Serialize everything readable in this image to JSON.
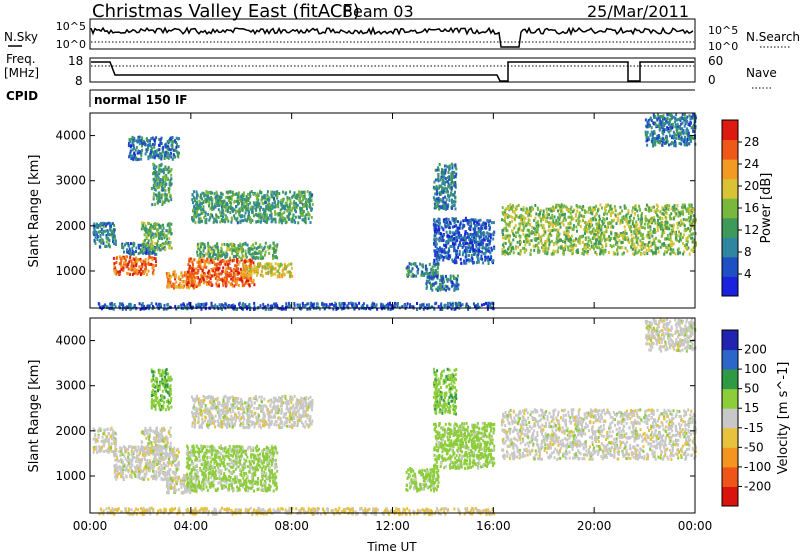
{
  "header": {
    "title": "Christmas Valley East (fitACF)",
    "beam": "Beam 03",
    "date": "25/Mar/2011"
  },
  "strips": {
    "noise": {
      "left_label": "N.Sky",
      "right_label": "N.Search",
      "left_ticks": [
        "10^5",
        "10^0"
      ],
      "right_ticks": [
        "10^5",
        "10^0"
      ]
    },
    "freq": {
      "left_label_1": "Freq.",
      "left_label_2": "[MHz]",
      "right_label": "Nave",
      "left_ticks": [
        "18",
        "8"
      ],
      "right_ticks": [
        "60",
        "0"
      ]
    },
    "cpid": {
      "label": "CPID",
      "value": "normal 150 IF"
    }
  },
  "colors": {
    "power": [
      "#1a22dd",
      "#1f4fc4",
      "#2f86a0",
      "#3f9a5a",
      "#79b83c",
      "#d9c234",
      "#f39a22",
      "#ee5818",
      "#dd1a10"
    ],
    "velocity": [
      "#d9140e",
      "#ef5518",
      "#f3951f",
      "#e8c23c",
      "#c8c8c8",
      "#8ccd3a",
      "#2f9a44",
      "#2c66c8",
      "#2024b0"
    ]
  },
  "chart_data": [
    {
      "type": "heatmap",
      "panel": "power",
      "xlabel": "",
      "ylabel": "Slant Range [km]",
      "xlim": [
        0,
        24
      ],
      "ylim": [
        180,
        4500
      ],
      "yticks": [
        1000,
        2000,
        3000,
        4000
      ],
      "colorbar": {
        "label": "Power [dB]",
        "ticks": [
          4,
          8,
          12,
          16,
          20,
          24,
          28
        ],
        "range": [
          0,
          32
        ]
      },
      "scatter_regions": [
        {
          "t": [
            0.1,
            1.0
          ],
          "r": [
            1550,
            2100
          ],
          "value": 10
        },
        {
          "t": [
            0.9,
            2.6
          ],
          "r": [
            950,
            1350
          ],
          "value": 26
        },
        {
          "t": [
            1.2,
            2.6
          ],
          "r": [
            1400,
            1650
          ],
          "value": 8
        },
        {
          "t": [
            2.0,
            3.2
          ],
          "r": [
            1500,
            2100
          ],
          "value": 14
        },
        {
          "t": [
            2.4,
            3.2
          ],
          "r": [
            2500,
            3400
          ],
          "value": 12
        },
        {
          "t": [
            3.0,
            4.2
          ],
          "r": [
            650,
            1050
          ],
          "value": 24
        },
        {
          "t": [
            3.8,
            6.5
          ],
          "r": [
            700,
            1300
          ],
          "value": 27
        },
        {
          "t": [
            4.2,
            7.4
          ],
          "r": [
            1300,
            1650
          ],
          "value": 14
        },
        {
          "t": [
            6.0,
            8.0
          ],
          "r": [
            900,
            1200
          ],
          "value": 20
        },
        {
          "t": [
            4.0,
            8.8
          ],
          "r": [
            2100,
            2800
          ],
          "value": 12
        },
        {
          "t": [
            1.5,
            3.5
          ],
          "r": [
            3500,
            4000
          ],
          "value": 8
        },
        {
          "t": [
            12.5,
            13.8
          ],
          "r": [
            900,
            1200
          ],
          "value": 10
        },
        {
          "t": [
            13.3,
            14.6
          ],
          "r": [
            600,
            950
          ],
          "value": 8
        },
        {
          "t": [
            13.6,
            16.0
          ],
          "r": [
            1200,
            2200
          ],
          "value": 6
        },
        {
          "t": [
            13.6,
            14.5
          ],
          "r": [
            2400,
            3400
          ],
          "value": 9
        },
        {
          "t": [
            16.3,
            24.0
          ],
          "r": [
            1400,
            2500
          ],
          "value": 16
        },
        {
          "t": [
            22.0,
            24.0
          ],
          "r": [
            3800,
            4500
          ],
          "value": 8
        },
        {
          "t": [
            0.3,
            16.0
          ],
          "r": [
            180,
            320
          ],
          "value": 6
        }
      ]
    },
    {
      "type": "heatmap",
      "panel": "velocity",
      "xlabel": "Time UT",
      "ylabel": "Slant Range [km]",
      "xlim": [
        0,
        24
      ],
      "ylim": [
        180,
        4500
      ],
      "xticks": [
        "00:00",
        "04:00",
        "08:00",
        "12:00",
        "16:00",
        "20:00",
        "00:00"
      ],
      "yticks": [
        1000,
        2000,
        3000,
        4000
      ],
      "colorbar": {
        "label": "Velocity [m s^-1]",
        "ticks": [
          "200",
          "100",
          "50",
          "15",
          "-15",
          "-50",
          "-100",
          "-200"
        ]
      },
      "scatter_regions": [
        {
          "t": [
            0.1,
            1.0
          ],
          "r": [
            1550,
            2100
          ],
          "value": 0
        },
        {
          "t": [
            0.9,
            3.5
          ],
          "r": [
            950,
            1700
          ],
          "value": 0
        },
        {
          "t": [
            2.0,
            3.2
          ],
          "r": [
            1500,
            2100
          ],
          "value": 0
        },
        {
          "t": [
            2.4,
            3.2
          ],
          "r": [
            2500,
            3400
          ],
          "value": 40
        },
        {
          "t": [
            3.0,
            4.2
          ],
          "r": [
            650,
            1050
          ],
          "value": 0
        },
        {
          "t": [
            3.8,
            7.4
          ],
          "r": [
            700,
            1700
          ],
          "value": 25
        },
        {
          "t": [
            4.0,
            8.8
          ],
          "r": [
            2100,
            2800
          ],
          "value": 0
        },
        {
          "t": [
            12.5,
            13.8
          ],
          "r": [
            700,
            1200
          ],
          "value": 30
        },
        {
          "t": [
            13.6,
            16.0
          ],
          "r": [
            1200,
            2200
          ],
          "value": 30
        },
        {
          "t": [
            13.6,
            14.5
          ],
          "r": [
            2400,
            3400
          ],
          "value": 40
        },
        {
          "t": [
            16.3,
            24.0
          ],
          "r": [
            1400,
            2500
          ],
          "value": 0
        },
        {
          "t": [
            22.0,
            24.0
          ],
          "r": [
            3800,
            4500
          ],
          "value": 0
        },
        {
          "t": [
            0.3,
            16.0
          ],
          "r": [
            180,
            320
          ],
          "value": -20
        }
      ]
    }
  ]
}
